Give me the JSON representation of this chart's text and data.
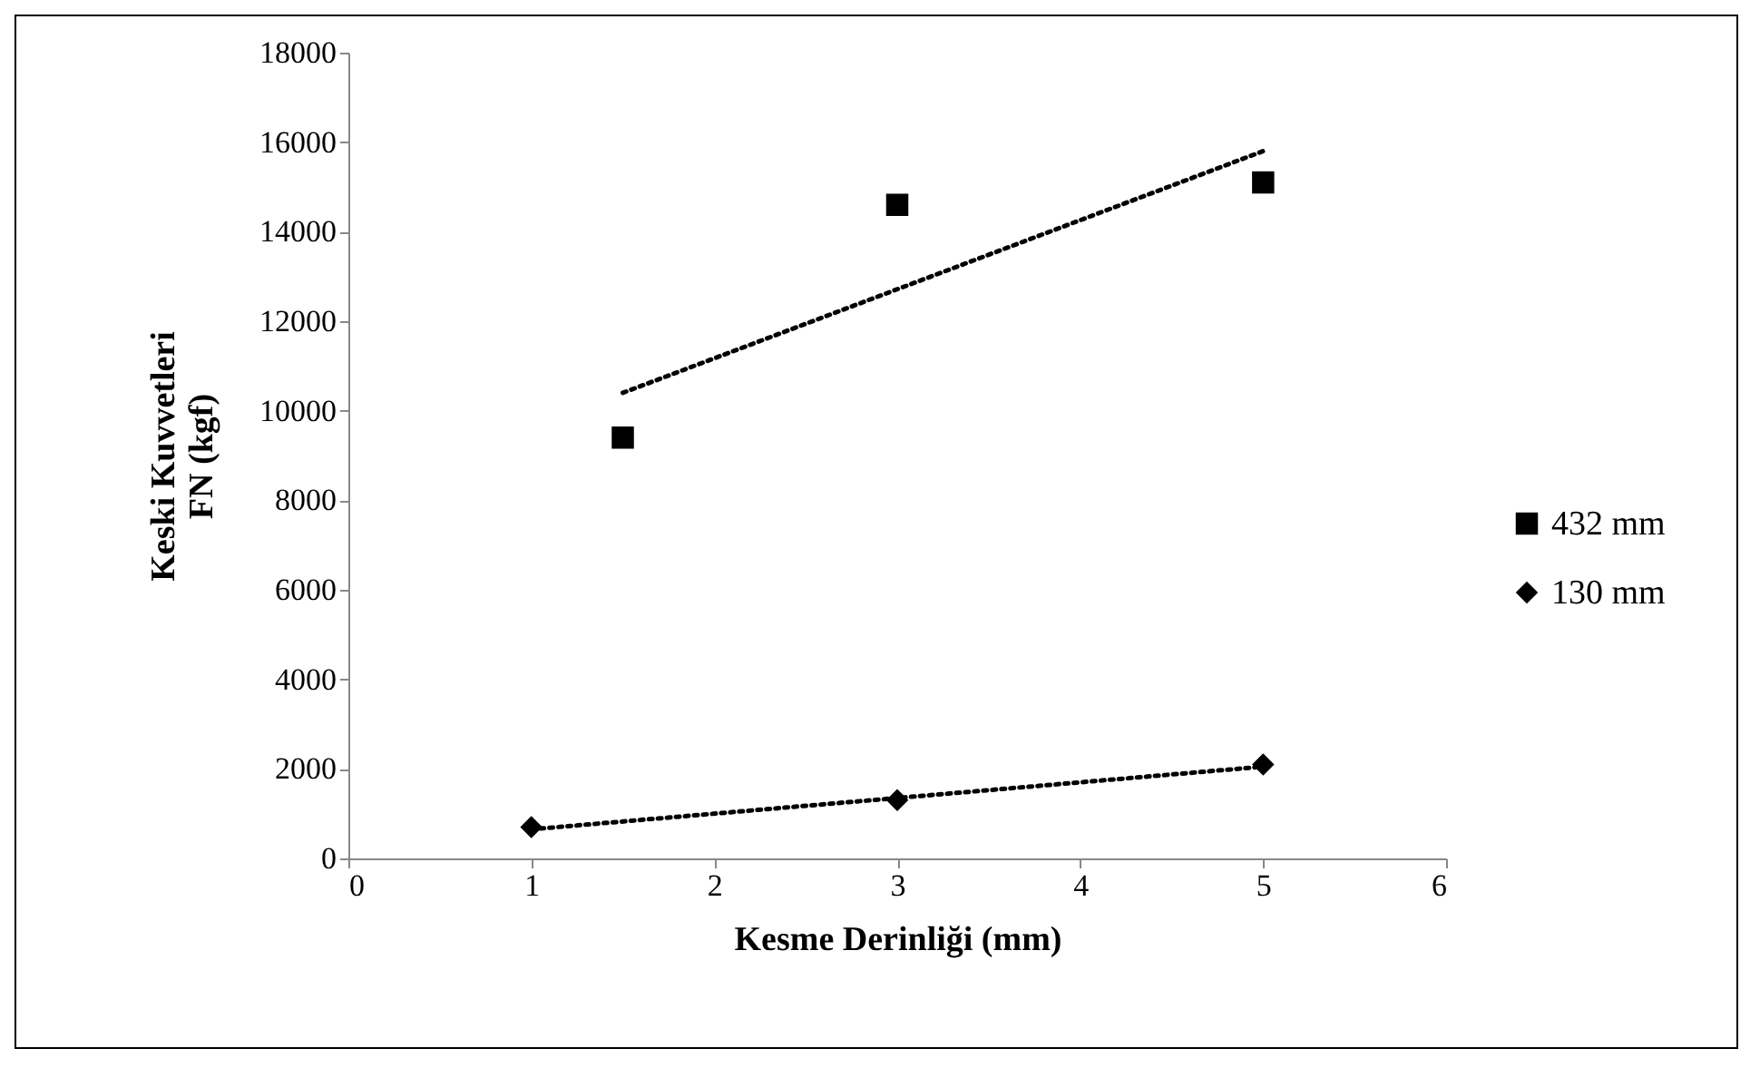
{
  "chart_data": {
    "type": "scatter",
    "xlabel": "Kesme Derinliği (mm)",
    "ylabel": "Keski Kuvvetleri\nFN (kgf)",
    "xlim": [
      0,
      6
    ],
    "xticks": [
      0,
      1,
      2,
      3,
      4,
      5,
      6
    ],
    "ylim": [
      0,
      18000
    ],
    "yticks": [
      0,
      2000,
      4000,
      6000,
      8000,
      10000,
      12000,
      14000,
      16000,
      18000
    ],
    "grid": false,
    "legend": "right",
    "series": [
      {
        "name": "432 mm",
        "marker": "square",
        "color": "#000000",
        "x": [
          1.5,
          3,
          5
        ],
        "values": [
          9400,
          14600,
          15100
        ]
      },
      {
        "name": "130 mm",
        "marker": "diamond",
        "color": "#000000",
        "x": [
          1,
          3,
          5
        ],
        "values": [
          700,
          1300,
          2100
        ]
      },
      {
        "type": "line",
        "line_style": "dotted",
        "marker": "none",
        "color": "#000000",
        "x": [
          1.5,
          5
        ],
        "values": [
          10400,
          15800
        ]
      },
      {
        "type": "line",
        "line_style": "dotted",
        "marker": "none",
        "color": "#000000",
        "x": [
          1,
          5
        ],
        "values": [
          650,
          2050
        ]
      }
    ]
  }
}
